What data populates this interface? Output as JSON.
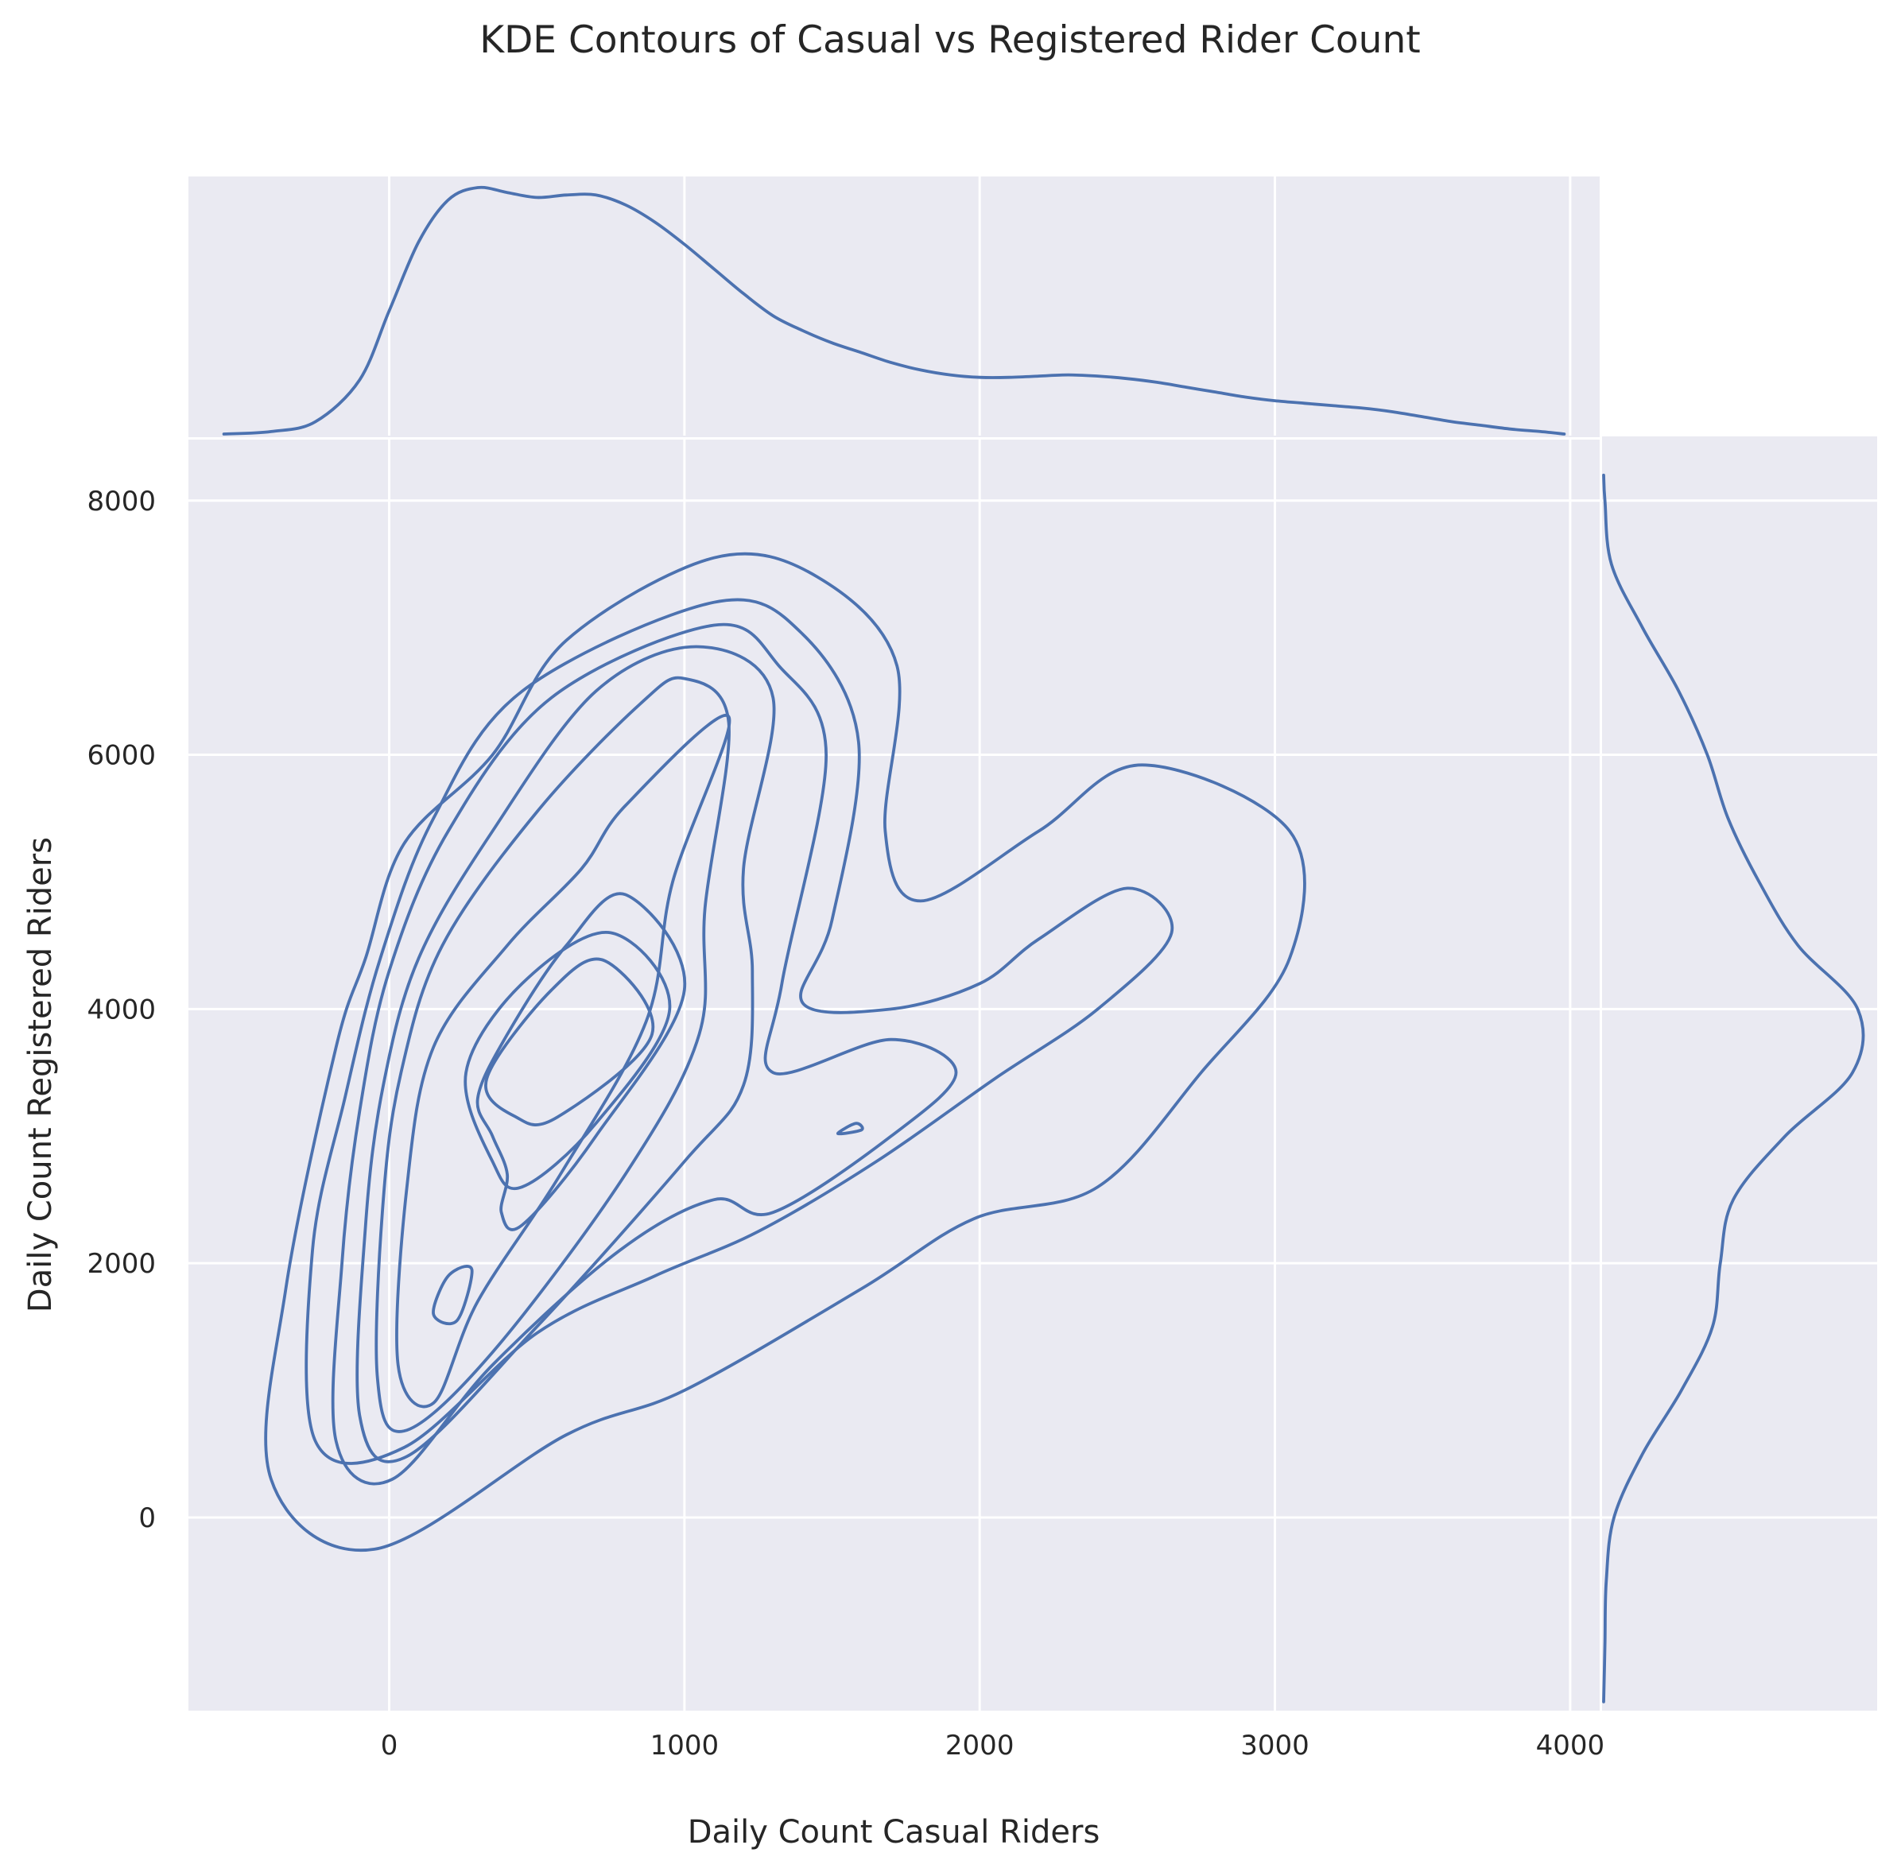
{
  "chart_data": {
    "type": "kde-joint",
    "title": "KDE Contours of Casual vs Registered Rider Count",
    "xlabel": "Daily Count Casual Riders",
    "ylabel": "Daily Count Registered Riders",
    "xlim": [
      -680,
      4100
    ],
    "ylim": [
      -1520,
      8480
    ],
    "xticks": [
      0,
      1000,
      2000,
      3000,
      4000
    ],
    "yticks": [
      0,
      2000,
      4000,
      6000,
      8000
    ],
    "xtick_labels": [
      "0",
      "1000",
      "2000",
      "3000",
      "4000"
    ],
    "ytick_labels": [
      "0",
      "2000",
      "4000",
      "6000",
      "8000"
    ],
    "grid": true,
    "color": "#4c72b0",
    "background": "#eaeaf2",
    "contours": [
      [
        [
          1100,
          7550
        ],
        [
          1450,
          7400
        ],
        [
          1720,
          6700
        ],
        [
          1680,
          5400
        ],
        [
          1800,
          4850
        ],
        [
          2200,
          5400
        ],
        [
          2550,
          5920
        ],
        [
          3050,
          5400
        ],
        [
          3050,
          4400
        ],
        [
          2750,
          3500
        ],
        [
          2400,
          2600
        ],
        [
          1980,
          2350
        ],
        [
          1600,
          1800
        ],
        [
          1000,
          1000
        ],
        [
          600,
          650
        ],
        [
          -50,
          -250
        ],
        [
          -400,
          300
        ],
        [
          -350,
          1800
        ],
        [
          -180,
          3700
        ],
        [
          -80,
          4400
        ],
        [
          50,
          5300
        ],
        [
          350,
          6000
        ],
        [
          600,
          6900
        ]
      ],
      [
        [
          1100,
          7200
        ],
        [
          1400,
          6950
        ],
        [
          1590,
          6100
        ],
        [
          1500,
          4700
        ],
        [
          1400,
          4050
        ],
        [
          1700,
          4000
        ],
        [
          2000,
          4200
        ],
        [
          2200,
          4550
        ],
        [
          2500,
          4950
        ],
        [
          2650,
          4600
        ],
        [
          2400,
          4000
        ],
        [
          2050,
          3450
        ],
        [
          1650,
          2800
        ],
        [
          1250,
          2250
        ],
        [
          900,
          1900
        ],
        [
          500,
          1450
        ],
        [
          50,
          550
        ],
        [
          -250,
          600
        ],
        [
          -260,
          2100
        ],
        [
          -150,
          3300
        ],
        [
          -30,
          4400
        ],
        [
          150,
          5500
        ],
        [
          450,
          6500
        ]
      ],
      [
        [
          1100,
          7020
        ],
        [
          1320,
          6700
        ],
        [
          1480,
          6000
        ],
        [
          1330,
          4200
        ],
        [
          1300,
          3500
        ],
        [
          1700,
          3760
        ],
        [
          1920,
          3500
        ],
        [
          1700,
          3000
        ],
        [
          1300,
          2400
        ],
        [
          1100,
          2500
        ],
        [
          780,
          2100
        ],
        [
          350,
          1200
        ],
        [
          10,
          300
        ],
        [
          -180,
          600
        ],
        [
          -160,
          2000
        ],
        [
          -100,
          3200
        ],
        [
          0,
          4300
        ],
        [
          200,
          5400
        ],
        [
          550,
          6450
        ]
      ],
      [
        [
          1050,
          6850
        ],
        [
          1300,
          6450
        ],
        [
          1200,
          5100
        ],
        [
          1230,
          4300
        ],
        [
          1200,
          3400
        ],
        [
          1000,
          2800
        ],
        [
          500,
          1500
        ],
        [
          60,
          480
        ],
        [
          -100,
          800
        ],
        [
          -80,
          2300
        ],
        [
          -20,
          3400
        ],
        [
          100,
          4400
        ],
        [
          350,
          5400
        ],
        [
          700,
          6500
        ]
      ],
      [
        [
          1000,
          6600
        ],
        [
          1150,
          6250
        ],
        [
          1070,
          4800
        ],
        [
          1050,
          3800
        ],
        [
          800,
          2700
        ],
        [
          350,
          1300
        ],
        [
          50,
          680
        ],
        [
          -40,
          1100
        ],
        [
          -20,
          2500
        ],
        [
          40,
          3500
        ],
        [
          180,
          4500
        ],
        [
          500,
          5550
        ],
        [
          850,
          6400
        ]
      ],
      [
        [
          1150,
          6300
        ],
        [
          960,
          5000
        ],
        [
          870,
          3900
        ],
        [
          580,
          2700
        ],
        [
          300,
          1700
        ],
        [
          150,
          900
        ],
        [
          30,
          1200
        ],
        [
          60,
          2600
        ],
        [
          150,
          3700
        ],
        [
          400,
          4500
        ],
        [
          650,
          5100
        ],
        [
          800,
          5600
        ]
      ],
      [
        [
          800,
          4900
        ],
        [
          1000,
          4150
        ],
        [
          700,
          3000
        ],
        [
          450,
          2300
        ],
        [
          380,
          2400
        ],
        [
          400,
          2700
        ],
        [
          350,
          3000
        ],
        [
          300,
          3300
        ],
        [
          400,
          3800
        ],
        [
          600,
          4500
        ]
      ],
      [
        [
          750,
          4600
        ],
        [
          950,
          4000
        ],
        [
          700,
          3100
        ],
        [
          450,
          2600
        ],
        [
          350,
          2800
        ],
        [
          260,
          3500
        ],
        [
          450,
          4200
        ]
      ],
      [
        [
          730,
          4380
        ],
        [
          890,
          3800
        ],
        [
          570,
          3150
        ],
        [
          430,
          3150
        ],
        [
          330,
          3450
        ],
        [
          550,
          4150
        ]
      ],
      [
        [
          280,
          1950
        ],
        [
          230,
          1550
        ],
        [
          150,
          1600
        ],
        [
          200,
          1900
        ]
      ],
      [
        [
          1580,
          3100
        ],
        [
          1520,
          3020
        ],
        [
          1600,
          3050
        ]
      ]
    ],
    "x_marginal": {
      "x": [
        -560,
        -400,
        -250,
        -100,
        0,
        100,
        200,
        300,
        400,
        500,
        600,
        700,
        800,
        900,
        1000,
        1100,
        1200,
        1300,
        1400,
        1500,
        1600,
        1700,
        1800,
        1900,
        2000,
        2100,
        2200,
        2300,
        2400,
        2500,
        2600,
        2700,
        2800,
        2900,
        3000,
        3100,
        3200,
        3300,
        3400,
        3500,
        3600,
        3700,
        3800,
        3900,
        3980
      ],
      "density": [
        0.0,
        0.01,
        0.05,
        0.22,
        0.5,
        0.78,
        0.95,
        1.0,
        0.98,
        0.96,
        0.97,
        0.97,
        0.93,
        0.86,
        0.77,
        0.67,
        0.57,
        0.48,
        0.42,
        0.37,
        0.33,
        0.29,
        0.26,
        0.24,
        0.23,
        0.23,
        0.235,
        0.24,
        0.235,
        0.225,
        0.21,
        0.19,
        0.17,
        0.15,
        0.135,
        0.125,
        0.115,
        0.105,
        0.09,
        0.07,
        0.05,
        0.035,
        0.02,
        0.01,
        0.0
      ]
    },
    "y_marginal": {
      "y": [
        -1450,
        -1000,
        -500,
        0,
        500,
        1000,
        1500,
        2000,
        2500,
        3000,
        3500,
        4000,
        4500,
        5000,
        5500,
        6000,
        6500,
        7000,
        7500,
        8000,
        8200
      ],
      "density": [
        0.0,
        0.005,
        0.01,
        0.04,
        0.15,
        0.3,
        0.42,
        0.45,
        0.5,
        0.7,
        0.96,
        0.98,
        0.75,
        0.6,
        0.48,
        0.4,
        0.29,
        0.15,
        0.03,
        0.005,
        0.0
      ]
    }
  }
}
